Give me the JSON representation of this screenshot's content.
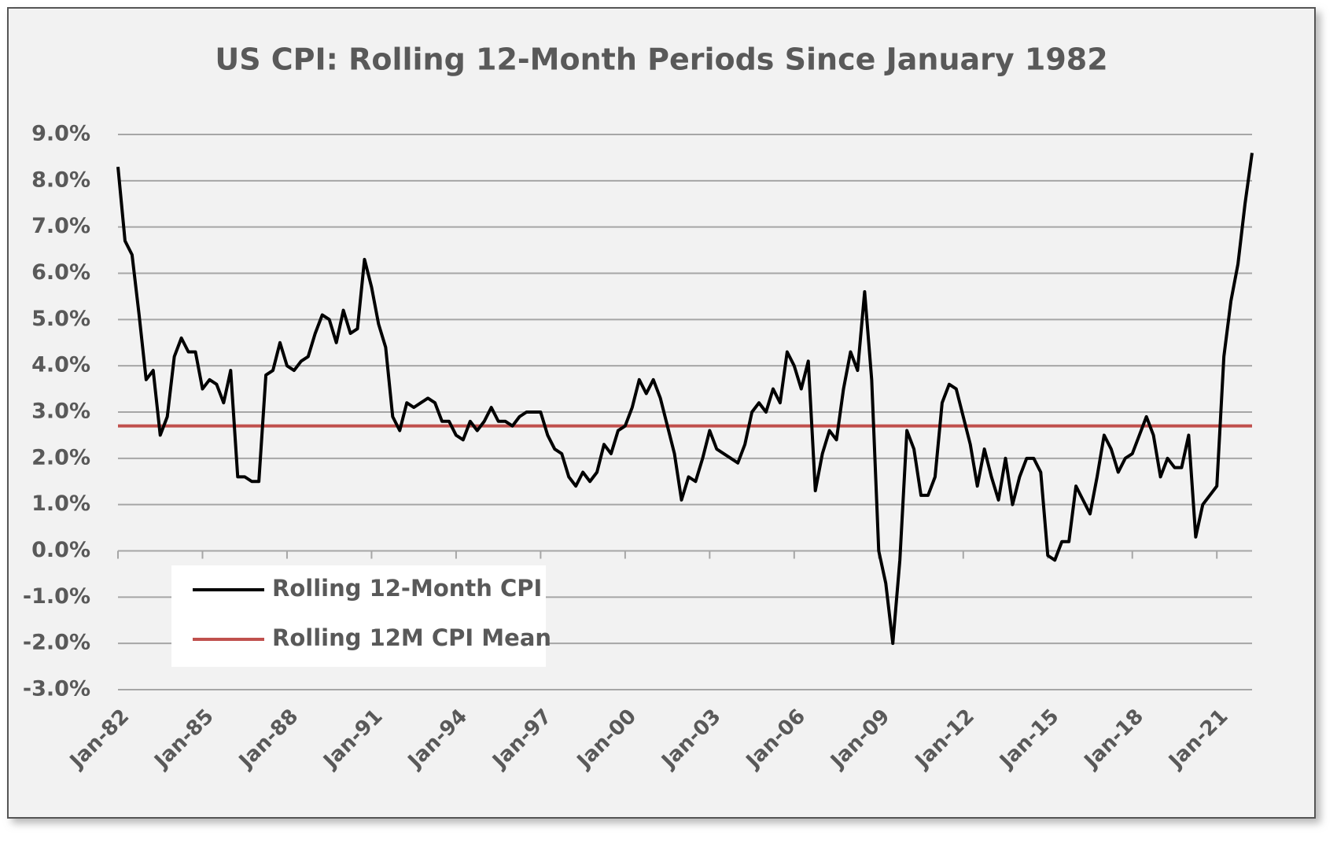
{
  "chart_data": {
    "type": "line",
    "title": "US CPI: Rolling 12-Month Periods Since January 1982",
    "categories": [
      "Jan-82",
      null,
      null,
      null,
      null,
      null,
      null,
      null,
      null,
      null,
      null,
      null,
      "Jan-85",
      null,
      null,
      null,
      null,
      null,
      null,
      null,
      null,
      null,
      null,
      null,
      "Jan-88",
      null,
      null,
      null,
      null,
      null,
      null,
      null,
      null,
      null,
      null,
      null,
      "Jan-91",
      null,
      null,
      null,
      null,
      null,
      null,
      null,
      null,
      null,
      null,
      null,
      "Jan-94",
      null,
      null,
      null,
      null,
      null,
      null,
      null,
      null,
      null,
      null,
      null,
      "Jan-97",
      null,
      null,
      null,
      null,
      null,
      null,
      null,
      null,
      null,
      null,
      null,
      "Jan-00",
      null,
      null,
      null,
      null,
      null,
      null,
      null,
      null,
      null,
      null,
      null,
      "Jan-03",
      null,
      null,
      null,
      null,
      null,
      null,
      null,
      null,
      null,
      null,
      null,
      "Jan-06",
      null,
      null,
      null,
      null,
      null,
      null,
      null,
      null,
      null,
      null,
      null,
      "Jan-09",
      null,
      null,
      null,
      null,
      null,
      null,
      null,
      null,
      null,
      null,
      null,
      "Jan-12",
      null,
      null,
      null,
      null,
      null,
      null,
      null,
      null,
      null,
      null,
      null,
      "Jan-15",
      null,
      null,
      null,
      null,
      null,
      null,
      null,
      null,
      null,
      null,
      null,
      "Jan-18",
      null,
      null,
      null,
      null,
      null,
      null,
      null,
      null,
      null,
      null,
      null,
      "Jan-21",
      null,
      null,
      null,
      null,
      null
    ],
    "series": [
      {
        "name": "Rolling 12-Month CPI",
        "color": "#000000",
        "values": [
          8.3,
          6.7,
          6.4,
          5.1,
          3.7,
          3.9,
          2.5,
          2.9,
          4.2,
          4.6,
          4.3,
          4.3,
          3.5,
          3.7,
          3.6,
          3.2,
          3.9,
          1.6,
          1.6,
          1.5,
          1.5,
          3.8,
          3.9,
          4.5,
          4.0,
          3.9,
          4.1,
          4.2,
          4.7,
          5.1,
          5.0,
          4.5,
          5.2,
          4.7,
          4.8,
          6.3,
          5.7,
          4.9,
          4.4,
          2.9,
          2.6,
          3.2,
          3.1,
          3.2,
          3.3,
          3.2,
          2.8,
          2.8,
          2.5,
          2.4,
          2.8,
          2.6,
          2.8,
          3.1,
          2.8,
          2.8,
          2.7,
          2.9,
          3.0,
          3.0,
          3.0,
          2.5,
          2.2,
          2.1,
          1.6,
          1.4,
          1.7,
          1.5,
          1.7,
          2.3,
          2.1,
          2.6,
          2.7,
          3.1,
          3.7,
          3.4,
          3.7,
          3.3,
          2.7,
          2.1,
          1.1,
          1.6,
          1.5,
          2.0,
          2.6,
          2.2,
          2.1,
          2.0,
          1.9,
          2.3,
          3.0,
          3.2,
          3.0,
          3.5,
          3.2,
          4.3,
          4.0,
          3.5,
          4.1,
          1.3,
          2.1,
          2.6,
          2.4,
          3.5,
          4.3,
          3.9,
          5.6,
          3.7,
          0.0,
          -0.7,
          -2.0,
          -0.2,
          2.6,
          2.2,
          1.2,
          1.2,
          1.6,
          3.2,
          3.6,
          3.5,
          2.9,
          2.3,
          1.4,
          2.2,
          1.6,
          1.1,
          2.0,
          1.0,
          1.6,
          2.0,
          2.0,
          1.7,
          -0.1,
          -0.2,
          0.2,
          0.2,
          1.4,
          1.1,
          0.8,
          1.6,
          2.5,
          2.2,
          1.7,
          2.0,
          2.1,
          2.5,
          2.9,
          2.5,
          1.6,
          2.0,
          1.8,
          1.8,
          2.5,
          0.3,
          1.0,
          1.2,
          1.4,
          4.2,
          5.4,
          6.2,
          7.5,
          8.6
        ]
      }
    ],
    "reference_lines": [
      {
        "name": "Rolling 12M CPI Mean",
        "color": "#c0504d",
        "value": 2.7
      }
    ],
    "ylim": [
      -3,
      9
    ],
    "yticks": [
      {
        "value": -3,
        "label": "-3.0%"
      },
      {
        "value": -2,
        "label": "-2.0%"
      },
      {
        "value": -1,
        "label": "-1.0%"
      },
      {
        "value": 0,
        "label": "0.0%"
      },
      {
        "value": 1,
        "label": "1.0%"
      },
      {
        "value": 2,
        "label": "2.0%"
      },
      {
        "value": 3,
        "label": "3.0%"
      },
      {
        "value": 4,
        "label": "4.0%"
      },
      {
        "value": 5,
        "label": "5.0%"
      },
      {
        "value": 6,
        "label": "6.0%"
      },
      {
        "value": 7,
        "label": "7.0%"
      },
      {
        "value": 8,
        "label": "8.0%"
      },
      {
        "value": 9,
        "label": "9.0%"
      }
    ],
    "grid": true,
    "legend": "lower left"
  }
}
